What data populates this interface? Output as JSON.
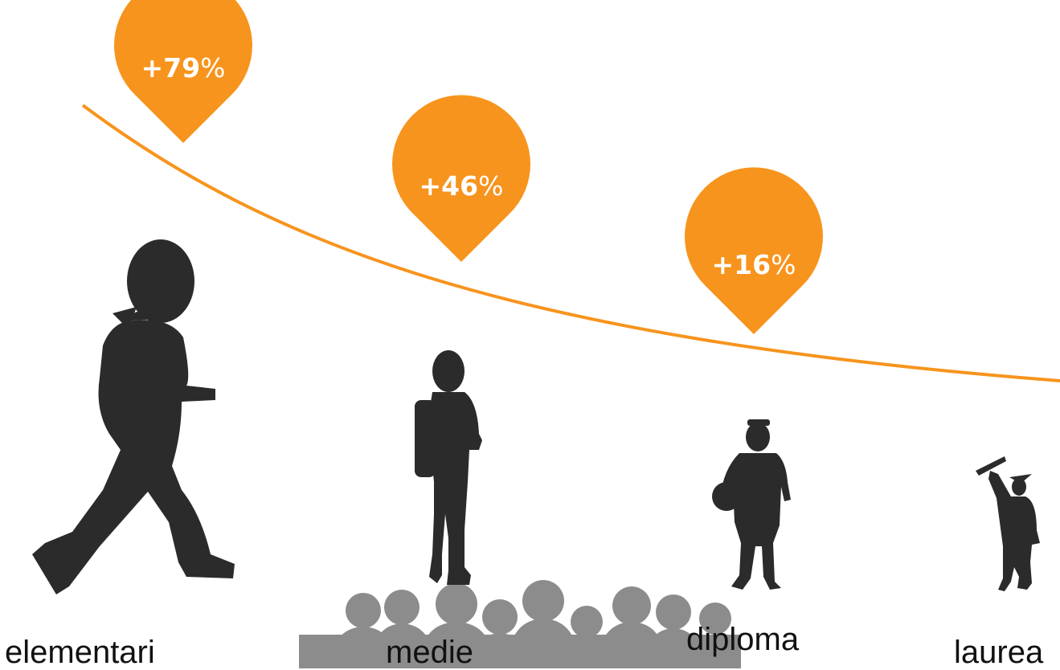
{
  "colors": {
    "accent": "#f7941d",
    "silhouette": "#2b2b2b",
    "crowd": "#8c8c8c"
  },
  "pins": [
    {
      "value": "+79",
      "unit": "%"
    },
    {
      "value": "+46",
      "unit": "%"
    },
    {
      "value": "+16",
      "unit": "%"
    }
  ],
  "levels": [
    {
      "label": "elementari"
    },
    {
      "label": "medie"
    },
    {
      "label": "diploma"
    },
    {
      "label": "laurea"
    }
  ],
  "icons": {
    "figure_1": "walking-boy-silhouette-icon",
    "figure_2": "schoolboy-backpack-silhouette-icon",
    "figure_3": "teen-ball-silhouette-icon",
    "figure_4": "graduate-silhouette-icon",
    "crowd": "crowd-silhouette-icon"
  }
}
